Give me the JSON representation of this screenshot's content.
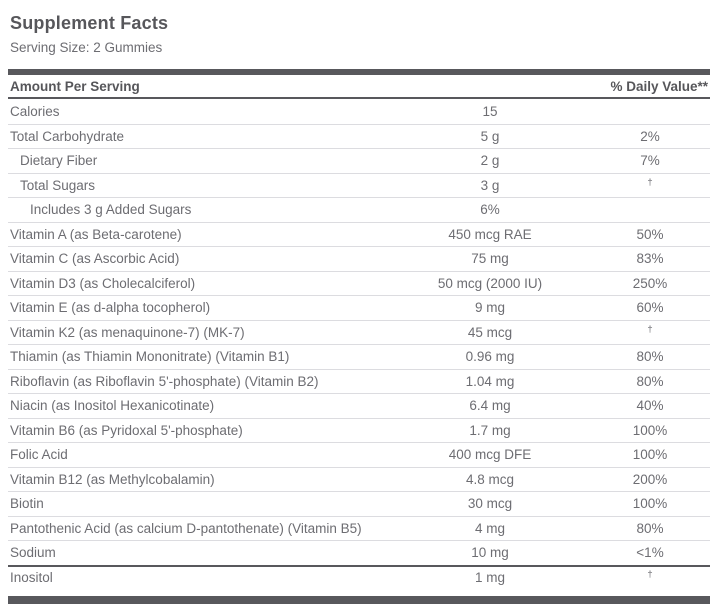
{
  "header": {
    "title": "Supplement Facts",
    "serving_size": "Serving Size: 2 Gummies"
  },
  "table": {
    "columns": {
      "amount": "Amount Per Serving",
      "dv": "% Daily Value**"
    },
    "rows": [
      {
        "name": "Calories",
        "amount": "15",
        "dv": "",
        "indent": 0
      },
      {
        "name": "Total Carbohydrate",
        "amount": "5 g",
        "dv": "2%",
        "indent": 0
      },
      {
        "name": "Dietary Fiber",
        "amount": "2 g",
        "dv": "7%",
        "indent": 1
      },
      {
        "name": "Total Sugars",
        "amount": "3 g",
        "dv": "†",
        "indent": 1
      },
      {
        "name": "Includes 3 g Added Sugars",
        "amount": "6%",
        "dv": "",
        "indent": 2
      },
      {
        "name": "Vitamin A (as Beta-carotene)",
        "amount": "450 mcg RAE",
        "dv": "50%",
        "indent": 0
      },
      {
        "name": "Vitamin C (as Ascorbic Acid)",
        "amount": "75 mg",
        "dv": "83%",
        "indent": 0
      },
      {
        "name": "Vitamin D3 (as Cholecalciferol)",
        "amount": "50 mcg (2000 IU)",
        "dv": "250%",
        "indent": 0
      },
      {
        "name": "Vitamin E (as d-alpha tocopherol)",
        "amount": "9 mg",
        "dv": "60%",
        "indent": 0
      },
      {
        "name": "Vitamin K2 (as menaquinone-7) (MK-7)",
        "amount": "45 mcg",
        "dv": "†",
        "indent": 0
      },
      {
        "name": "Thiamin (as Thiamin Mononitrate) (Vitamin B1)",
        "amount": "0.96 mg",
        "dv": "80%",
        "indent": 0
      },
      {
        "name": "Riboflavin (as Riboflavin 5'-phosphate) (Vitamin B2)",
        "amount": "1.04 mg",
        "dv": "80%",
        "indent": 0
      },
      {
        "name": "Niacin (as Inositol Hexanicotinate)",
        "amount": "6.4 mg",
        "dv": "40%",
        "indent": 0
      },
      {
        "name": "Vitamin B6 (as Pyridoxal 5'-phosphate)",
        "amount": "1.7 mg",
        "dv": "100%",
        "indent": 0
      },
      {
        "name": "Folic Acid",
        "amount": "400 mcg DFE",
        "dv": "100%",
        "indent": 0
      },
      {
        "name": "Vitamin B12 (as Methylcobalamin)",
        "amount": "4.8 mcg",
        "dv": "200%",
        "indent": 0
      },
      {
        "name": "Biotin",
        "amount": "30 mcg",
        "dv": "100%",
        "indent": 0
      },
      {
        "name": "Pantothenic Acid (as calcium D-pantothenate) (Vitamin B5)",
        "amount": "4 mg",
        "dv": "80%",
        "indent": 0
      },
      {
        "name": "Sodium",
        "amount": "10 mg",
        "dv": "<1%",
        "indent": 0
      },
      {
        "name": "Inositol",
        "amount": "1 mg",
        "dv": "†",
        "indent": 0,
        "heavy_divider": true
      }
    ]
  },
  "colors": {
    "bar": "#58585C",
    "title_text": "#57575B",
    "body_text": "#6D6D72",
    "separator": "#DCDCE0",
    "background": "#FFFFFF"
  },
  "symbols": {
    "dagger": "†",
    "footnote_marker": "**"
  }
}
